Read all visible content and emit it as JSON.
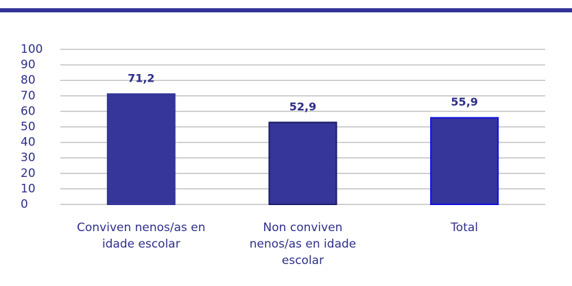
{
  "chart_data": {
    "type": "bar",
    "categories": [
      "Conviven nenos/as en idade escolar",
      "Non conviven nenos/as en idade escolar",
      "Total"
    ],
    "values": [
      71.2,
      52.9,
      55.9
    ],
    "value_labels": [
      "71,2",
      "52,9",
      "55,9"
    ],
    "color": "#35359a",
    "edgecolors": [
      "#35359a",
      "#1a1a66",
      "#1010e0"
    ],
    "ylim": [
      0,
      100
    ],
    "yticks": [
      0,
      10,
      20,
      30,
      40,
      50,
      60,
      70,
      80,
      90,
      100
    ],
    "grid": true
  }
}
